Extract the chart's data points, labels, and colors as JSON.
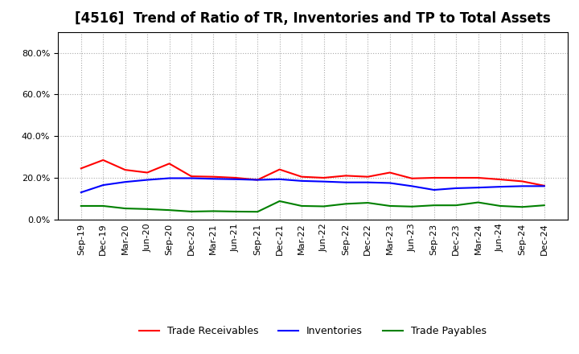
{
  "title": "[4516]  Trend of Ratio of TR, Inventories and TP to Total Assets",
  "x_labels": [
    "Sep-19",
    "Dec-19",
    "Mar-20",
    "Jun-20",
    "Sep-20",
    "Dec-20",
    "Mar-21",
    "Jun-21",
    "Sep-21",
    "Dec-21",
    "Mar-22",
    "Jun-22",
    "Sep-22",
    "Dec-22",
    "Mar-23",
    "Jun-23",
    "Sep-23",
    "Dec-23",
    "Mar-24",
    "Jun-24",
    "Sep-24",
    "Dec-24"
  ],
  "trade_receivables": [
    0.245,
    0.285,
    0.238,
    0.225,
    0.268,
    0.207,
    0.205,
    0.2,
    0.19,
    0.24,
    0.205,
    0.2,
    0.21,
    0.205,
    0.225,
    0.197,
    0.2,
    0.2,
    0.2,
    0.192,
    0.183,
    0.162
  ],
  "inventories": [
    0.13,
    0.165,
    0.18,
    0.19,
    0.198,
    0.198,
    0.195,
    0.193,
    0.19,
    0.193,
    0.185,
    0.182,
    0.178,
    0.178,
    0.175,
    0.16,
    0.142,
    0.15,
    0.153,
    0.157,
    0.16,
    0.16
  ],
  "trade_payables": [
    0.065,
    0.065,
    0.053,
    0.05,
    0.045,
    0.038,
    0.04,
    0.038,
    0.037,
    0.088,
    0.065,
    0.063,
    0.075,
    0.08,
    0.065,
    0.062,
    0.068,
    0.068,
    0.082,
    0.065,
    0.06,
    0.068
  ],
  "tr_color": "#FF0000",
  "inv_color": "#0000FF",
  "tp_color": "#008000",
  "bg_color": "#FFFFFF",
  "grid_color": "#AAAAAA",
  "ylim": [
    0.0,
    0.9
  ],
  "yticks": [
    0.0,
    0.2,
    0.4,
    0.6,
    0.8
  ],
  "title_fontsize": 12,
  "legend_fontsize": 9,
  "tick_fontsize": 8
}
